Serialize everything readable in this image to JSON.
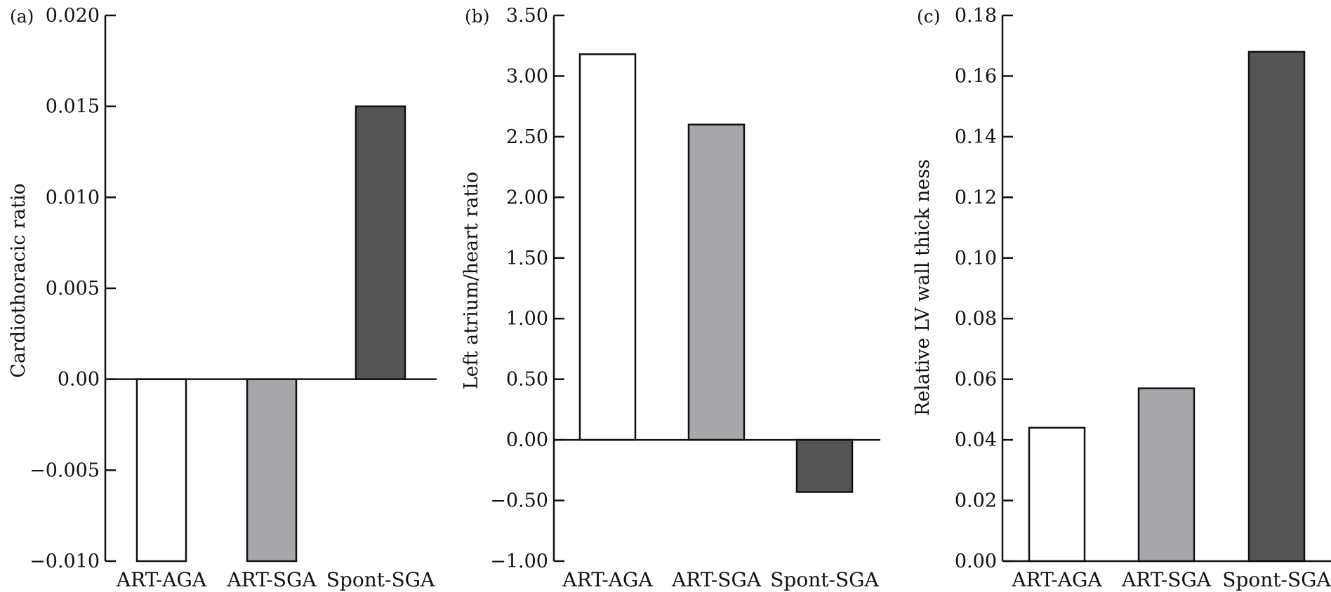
{
  "chart_data": [
    {
      "type": "bar",
      "panel": "(a)",
      "ylabel": "Cardiothoracic ratio",
      "categories": [
        "ART-AGA",
        "ART-SGA",
        "Spont-SGA"
      ],
      "values": [
        -0.01,
        -0.01,
        0.015
      ],
      "colors": [
        "#ffffff",
        "#a7a7ab",
        "#555555"
      ],
      "ylim": [
        -0.01,
        0.02
      ],
      "yticks": [
        -0.01,
        -0.005,
        0.0,
        0.005,
        0.01,
        0.015,
        0.02
      ],
      "ytick_labels": [
        "−0.010",
        "−0.005",
        "0.00",
        "0.005",
        "0.010",
        "0.015",
        "0.020"
      ],
      "grid": false,
      "legend": "none"
    },
    {
      "type": "bar",
      "panel": "(b)",
      "ylabel": "Left atrium/heart ratio",
      "categories": [
        "ART-AGA",
        "ART-SGA",
        "Spont-SGA"
      ],
      "values": [
        3.18,
        2.6,
        -0.43
      ],
      "colors": [
        "#ffffff",
        "#a7a7ab",
        "#555555"
      ],
      "ylim": [
        -1.0,
        3.5
      ],
      "yticks": [
        -1.0,
        -0.5,
        0.0,
        0.5,
        1.0,
        1.5,
        2.0,
        2.5,
        3.0,
        3.5
      ],
      "ytick_labels": [
        "−1.00",
        "−0.50",
        "0.00",
        "0.50",
        "1.00",
        "1.50",
        "2.00",
        "2.50",
        "3.00",
        "3.50"
      ],
      "grid": false,
      "legend": "none"
    },
    {
      "type": "bar",
      "panel": "(c)",
      "ylabel": "Relative LV wall thick ness",
      "categories": [
        "ART-AGA",
        "ART-SGA",
        "Spont-SGA"
      ],
      "values": [
        0.044,
        0.057,
        0.168
      ],
      "colors": [
        "#ffffff",
        "#a7a7ab",
        "#555555"
      ],
      "ylim": [
        0.0,
        0.18
      ],
      "yticks": [
        0.0,
        0.02,
        0.04,
        0.06,
        0.08,
        0.1,
        0.12,
        0.14,
        0.16,
        0.18
      ],
      "ytick_labels": [
        "0.00",
        "0.02",
        "0.04",
        "0.06",
        "0.08",
        "0.10",
        "0.12",
        "0.14",
        "0.16",
        "0.18"
      ],
      "grid": false,
      "legend": "none"
    }
  ]
}
